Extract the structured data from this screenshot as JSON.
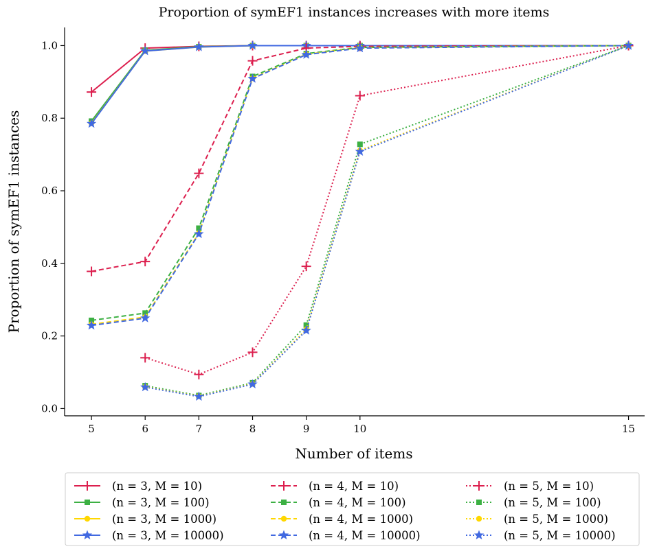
{
  "chart_data": {
    "type": "line",
    "title": "Proportion of symEF1 instances increases with more items",
    "xlabel": "Number of items",
    "ylabel": "Proportion of symEF1 instances",
    "xlim": [
      4.5,
      15.3
    ],
    "ylim": [
      -0.02,
      1.05
    ],
    "x_ticks": [
      5,
      6,
      7,
      8,
      9,
      10,
      15
    ],
    "y_ticks": [
      0.0,
      0.2,
      0.4,
      0.6,
      0.8,
      1.0
    ],
    "y_tick_labels": [
      "0.0",
      "0.2",
      "0.4",
      "0.6",
      "0.8",
      "1.0"
    ],
    "grid": false,
    "legend_placement": "below",
    "colors": {
      "M10": "#dc1f4e",
      "M100": "#3cb043",
      "M1000": "#ffd700",
      "M10000": "#4169e1"
    },
    "series": [
      {
        "name": "(n = 3, M = 10)",
        "n": 3,
        "M": 10,
        "style": "solid",
        "marker": "plus",
        "color": "#dc1f4e",
        "x": [
          5,
          6,
          7,
          8,
          9,
          10,
          15
        ],
        "y": [
          0.872,
          0.993,
          0.998,
          1.0,
          1.0,
          1.0,
          1.0
        ]
      },
      {
        "name": "(n = 3, M = 100)",
        "n": 3,
        "M": 100,
        "style": "solid",
        "marker": "square",
        "color": "#3cb043",
        "x": [
          5,
          6,
          7,
          8,
          9,
          10,
          15
        ],
        "y": [
          0.792,
          0.987,
          0.997,
          1.0,
          1.0,
          1.0,
          1.0
        ]
      },
      {
        "name": "(n = 3, M = 1000)",
        "n": 3,
        "M": 1000,
        "style": "solid",
        "marker": "circle",
        "color": "#ffd700",
        "x": [
          5,
          6,
          7,
          8,
          9,
          10,
          15
        ],
        "y": [
          0.786,
          0.985,
          0.996,
          1.0,
          1.0,
          1.0,
          1.0
        ]
      },
      {
        "name": "(n = 3, M = 10000)",
        "n": 3,
        "M": 10000,
        "style": "solid",
        "marker": "star",
        "color": "#4169e1",
        "x": [
          5,
          6,
          7,
          8,
          9,
          10,
          15
        ],
        "y": [
          0.785,
          0.985,
          0.996,
          1.0,
          1.0,
          1.0,
          1.0
        ]
      },
      {
        "name": "(n = 4, M = 10)",
        "n": 4,
        "M": 10,
        "style": "dashed",
        "marker": "plus",
        "color": "#dc1f4e",
        "x": [
          5,
          6,
          7,
          8,
          9,
          10,
          15
        ],
        "y": [
          0.378,
          0.405,
          0.648,
          0.958,
          0.993,
          0.998,
          1.0
        ]
      },
      {
        "name": "(n = 4, M = 100)",
        "n": 4,
        "M": 100,
        "style": "dashed",
        "marker": "square",
        "color": "#3cb043",
        "x": [
          5,
          6,
          7,
          8,
          9,
          10,
          15
        ],
        "y": [
          0.243,
          0.263,
          0.497,
          0.915,
          0.978,
          0.995,
          1.0
        ]
      },
      {
        "name": "(n = 4, M = 1000)",
        "n": 4,
        "M": 1000,
        "style": "dashed",
        "marker": "circle",
        "color": "#ffd700",
        "x": [
          5,
          6,
          7,
          8,
          9,
          10,
          15
        ],
        "y": [
          0.232,
          0.252,
          0.483,
          0.91,
          0.976,
          0.994,
          1.0
        ]
      },
      {
        "name": "(n = 4, M = 10000)",
        "n": 4,
        "M": 10000,
        "style": "dashed",
        "marker": "star",
        "color": "#4169e1",
        "x": [
          5,
          6,
          7,
          8,
          9,
          10,
          15
        ],
        "y": [
          0.229,
          0.249,
          0.481,
          0.909,
          0.975,
          0.993,
          1.0
        ]
      },
      {
        "name": "(n = 5, M = 10)",
        "n": 5,
        "M": 10,
        "style": "dotted",
        "marker": "plus",
        "color": "#dc1f4e",
        "x": [
          6,
          7,
          8,
          9,
          10,
          15
        ],
        "y": [
          0.14,
          0.094,
          0.155,
          0.392,
          0.862,
          1.0
        ]
      },
      {
        "name": "(n = 5, M = 100)",
        "n": 5,
        "M": 100,
        "style": "dotted",
        "marker": "square",
        "color": "#3cb043",
        "x": [
          6,
          7,
          8,
          9,
          10,
          15
        ],
        "y": [
          0.063,
          0.036,
          0.071,
          0.23,
          0.728,
          1.0
        ]
      },
      {
        "name": "(n = 5, M = 1000)",
        "n": 5,
        "M": 1000,
        "style": "dotted",
        "marker": "circle",
        "color": "#ffd700",
        "x": [
          6,
          7,
          8,
          9,
          10,
          15
        ],
        "y": [
          0.06,
          0.034,
          0.068,
          0.218,
          0.711,
          1.0
        ]
      },
      {
        "name": "(n = 5, M = 10000)",
        "n": 5,
        "M": 10000,
        "style": "dotted",
        "marker": "star",
        "color": "#4169e1",
        "x": [
          6,
          7,
          8,
          9,
          10,
          15
        ],
        "y": [
          0.059,
          0.033,
          0.067,
          0.215,
          0.708,
          1.0
        ]
      }
    ]
  }
}
